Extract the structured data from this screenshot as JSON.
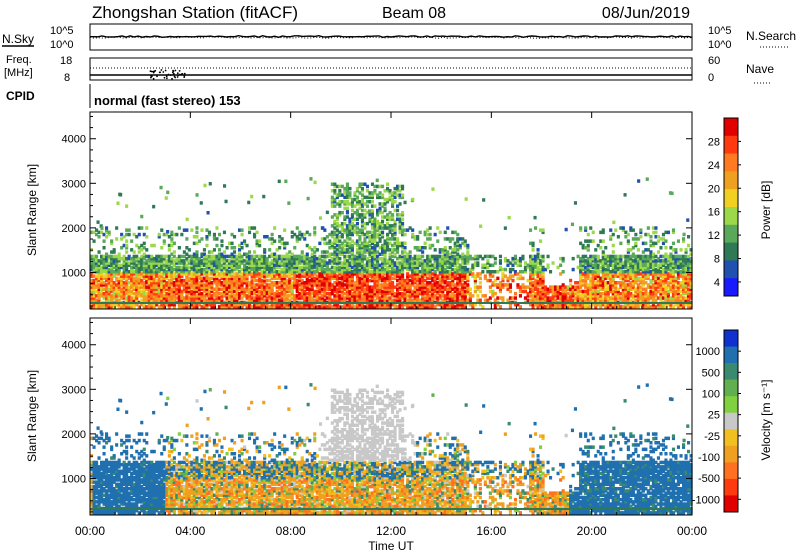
{
  "header": {
    "station": "Zhongshan Station (fitACF)",
    "beam": "Beam 08",
    "date": "08/Jun/2019"
  },
  "noise_panel": {
    "left_label": "N.Sky",
    "right_label": "N.Search",
    "y_ticks": [
      "10^5",
      "10^0"
    ]
  },
  "freq_panel": {
    "left_label_1": "Freq.",
    "left_label_2": "[MHz]",
    "right_label": "Nave",
    "left_ticks": [
      "18",
      "8"
    ],
    "right_ticks": [
      "60",
      "0"
    ]
  },
  "cpid_panel": {
    "label": "CPID",
    "text": "normal (fast stereo) 153"
  },
  "colors": {
    "power": [
      "#1a1aff",
      "#2050b0",
      "#2f7a55",
      "#5aa85a",
      "#9cd84a",
      "#f0d020",
      "#f0a020",
      "#ff7a20",
      "#ff3a10",
      "#e00000"
    ],
    "velocity": [
      "#1030d0",
      "#2070b0",
      "#3a8a70",
      "#60b050",
      "#80d040",
      "#c8c8c8",
      "#f0c020",
      "#f0a020",
      "#ff7020",
      "#ff3a10",
      "#e00000"
    ]
  },
  "chart_data": [
    {
      "type": "heatmap",
      "title": "Power",
      "ylabel": "Slant Range [km]",
      "xlabel": "",
      "ylim": [
        180,
        4600
      ],
      "x_ticks": [
        "00:00",
        "04:00",
        "08:00",
        "12:00",
        "16:00",
        "20:00",
        "00:00"
      ],
      "y_ticks": [
        1000,
        2000,
        3000,
        4000
      ],
      "colorbar": {
        "label": "Power [dB]",
        "ticks": [
          "28",
          "24",
          "20",
          "16",
          "12",
          "8",
          "4"
        ],
        "range": [
          0,
          30
        ]
      }
    },
    {
      "type": "heatmap",
      "title": "Velocity",
      "ylabel": "Slant Range [km]",
      "xlabel": "Time UT",
      "ylim": [
        180,
        4600
      ],
      "x_ticks": [
        "00:00",
        "04:00",
        "08:00",
        "12:00",
        "16:00",
        "20:00",
        "00:00"
      ],
      "y_ticks": [
        1000,
        2000,
        3000,
        4000
      ],
      "colorbar": {
        "label": "Velocity [m s⁻¹]",
        "ticks": [
          "1000",
          "500",
          "100",
          "25",
          "-25",
          "-100",
          "-500",
          "-1000"
        ],
        "range": [
          -1000,
          1000
        ]
      }
    }
  ]
}
